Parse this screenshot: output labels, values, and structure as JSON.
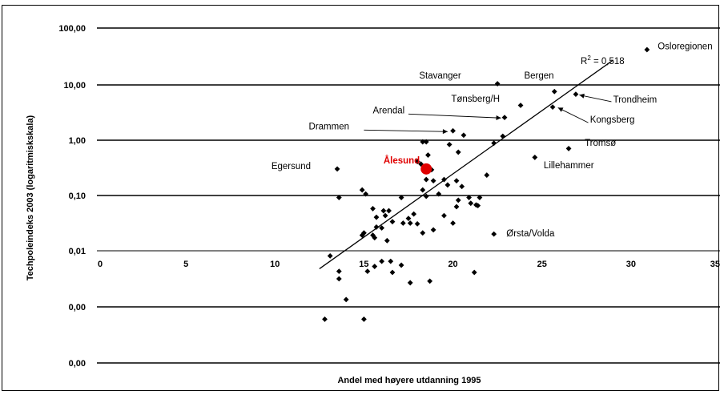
{
  "chart_data": {
    "type": "scatter",
    "title": "",
    "xlabel": "Andel med høyere utdanning 1995",
    "ylabel": "Techpoleindeks 2003 (logaritmiskskala)",
    "xlim": [
      0,
      35
    ],
    "y_scale": "log",
    "x_ticks": [
      "0",
      "5",
      "10",
      "15",
      "20",
      "25",
      "30",
      "35"
    ],
    "y_ticks": [
      "100,00",
      "10,00",
      "1,00",
      "0,10",
      "0,01",
      "0,00",
      "0,00"
    ],
    "grid": "horizontal",
    "r2_label": "R",
    "r2_sup": "2",
    "r2_value": " = 0,518",
    "trendline": {
      "x": [
        12.5,
        29.0
      ],
      "y": [
        0.005,
        28.0
      ]
    },
    "points": [
      {
        "x": 30.9,
        "y": 43.0
      },
      {
        "x": 22.5,
        "y": 10.5
      },
      {
        "x": 25.7,
        "y": 7.6
      },
      {
        "x": 26.9,
        "y": 6.8
      },
      {
        "x": 23.8,
        "y": 4.3
      },
      {
        "x": 25.6,
        "y": 4.0
      },
      {
        "x": 22.9,
        "y": 2.6
      },
      {
        "x": 20.0,
        "y": 1.5
      },
      {
        "x": 20.6,
        "y": 1.25
      },
      {
        "x": 22.8,
        "y": 1.2
      },
      {
        "x": 18.3,
        "y": 0.95
      },
      {
        "x": 18.5,
        "y": 0.95
      },
      {
        "x": 19.8,
        "y": 0.85
      },
      {
        "x": 22.3,
        "y": 0.9
      },
      {
        "x": 26.5,
        "y": 0.72
      },
      {
        "x": 20.3,
        "y": 0.62
      },
      {
        "x": 24.6,
        "y": 0.5
      },
      {
        "x": 18.6,
        "y": 0.55
      },
      {
        "x": 18.0,
        "y": 0.42
      },
      {
        "x": 18.2,
        "y": 0.38
      },
      {
        "x": 13.5,
        "y": 0.31
      },
      {
        "x": 18.8,
        "y": 0.3
      },
      {
        "x": 21.9,
        "y": 0.24
      },
      {
        "x": 18.5,
        "y": 0.2
      },
      {
        "x": 18.9,
        "y": 0.19
      },
      {
        "x": 19.5,
        "y": 0.2
      },
      {
        "x": 20.2,
        "y": 0.19
      },
      {
        "x": 19.7,
        "y": 0.16
      },
      {
        "x": 20.5,
        "y": 0.15
      },
      {
        "x": 18.3,
        "y": 0.13
      },
      {
        "x": 19.2,
        "y": 0.11
      },
      {
        "x": 14.9,
        "y": 0.13
      },
      {
        "x": 15.1,
        "y": 0.11
      },
      {
        "x": 13.6,
        "y": 0.095
      },
      {
        "x": 17.1,
        "y": 0.095
      },
      {
        "x": 18.5,
        "y": 0.1
      },
      {
        "x": 20.3,
        "y": 0.085
      },
      {
        "x": 20.9,
        "y": 0.095
      },
      {
        "x": 21.5,
        "y": 0.095
      },
      {
        "x": 21.0,
        "y": 0.075
      },
      {
        "x": 21.3,
        "y": 0.07
      },
      {
        "x": 21.4,
        "y": 0.068
      },
      {
        "x": 20.2,
        "y": 0.065
      },
      {
        "x": 15.5,
        "y": 0.06
      },
      {
        "x": 16.1,
        "y": 0.055
      },
      {
        "x": 16.4,
        "y": 0.055
      },
      {
        "x": 16.2,
        "y": 0.045
      },
      {
        "x": 17.8,
        "y": 0.048
      },
      {
        "x": 19.5,
        "y": 0.045
      },
      {
        "x": 15.7,
        "y": 0.042
      },
      {
        "x": 17.5,
        "y": 0.04
      },
      {
        "x": 16.6,
        "y": 0.035
      },
      {
        "x": 17.2,
        "y": 0.033
      },
      {
        "x": 17.6,
        "y": 0.033
      },
      {
        "x": 18.0,
        "y": 0.032
      },
      {
        "x": 20.0,
        "y": 0.033
      },
      {
        "x": 15.7,
        "y": 0.028
      },
      {
        "x": 16.0,
        "y": 0.027
      },
      {
        "x": 18.3,
        "y": 0.022
      },
      {
        "x": 18.9,
        "y": 0.025
      },
      {
        "x": 15.0,
        "y": 0.022
      },
      {
        "x": 15.5,
        "y": 0.02
      },
      {
        "x": 14.9,
        "y": 0.02
      },
      {
        "x": 15.6,
        "y": 0.018
      },
      {
        "x": 16.3,
        "y": 0.016
      },
      {
        "x": 22.3,
        "y": 0.021
      },
      {
        "x": 13.1,
        "y": 0.0085
      },
      {
        "x": 16.0,
        "y": 0.0068
      },
      {
        "x": 16.5,
        "y": 0.0068
      },
      {
        "x": 17.1,
        "y": 0.0058
      },
      {
        "x": 15.6,
        "y": 0.0055
      },
      {
        "x": 13.6,
        "y": 0.0045
      },
      {
        "x": 15.2,
        "y": 0.0045
      },
      {
        "x": 16.6,
        "y": 0.0043
      },
      {
        "x": 21.2,
        "y": 0.0043
      },
      {
        "x": 13.6,
        "y": 0.0033
      },
      {
        "x": 17.6,
        "y": 0.0028
      },
      {
        "x": 18.7,
        "y": 0.003
      },
      {
        "x": 14.0,
        "y": 0.0014
      },
      {
        "x": 12.8,
        "y": 0.00062
      },
      {
        "x": 15.0,
        "y": 0.00062
      }
    ],
    "highlight": {
      "x": 18.5,
      "y": 0.31,
      "label": "Ålesund",
      "color": "#e00000"
    },
    "annotations": [
      {
        "label": "Osloregionen",
        "x": 31.5,
        "y": 44.0
      },
      {
        "label": "Stavanger",
        "x": 18.1,
        "y": 13.0
      },
      {
        "label": "Bergen",
        "x": 24.0,
        "y": 13.0
      },
      {
        "label": "Tønsberg/H",
        "x": 19.9,
        "y": 5.0
      },
      {
        "label": "Arendal",
        "x": 15.5,
        "y": 3.1
      },
      {
        "label": "Drammen",
        "x": 11.9,
        "y": 1.6
      },
      {
        "label": "Trondheim",
        "x": 29.0,
        "y": 4.8
      },
      {
        "label": "Kongsberg",
        "x": 27.7,
        "y": 2.1
      },
      {
        "label": "Tromsø",
        "x": 27.4,
        "y": 0.8
      },
      {
        "label": "Lillehammer",
        "x": 25.1,
        "y": 0.32
      },
      {
        "label": "Egersund",
        "x": 9.8,
        "y": 0.31
      },
      {
        "label": "Ørsta/Volda",
        "x": 23.0,
        "y": 0.019
      }
    ],
    "arrows": [
      {
        "from": [
          15.0,
          1.55
        ],
        "to": [
          19.7,
          1.45
        ]
      },
      {
        "from": [
          17.5,
          3.0
        ],
        "to": [
          22.7,
          2.55
        ]
      },
      {
        "from": [
          28.9,
          5.0
        ],
        "to": [
          27.1,
          6.6
        ]
      },
      {
        "from": [
          27.6,
          2.1
        ],
        "to": [
          25.9,
          3.9
        ]
      }
    ]
  }
}
